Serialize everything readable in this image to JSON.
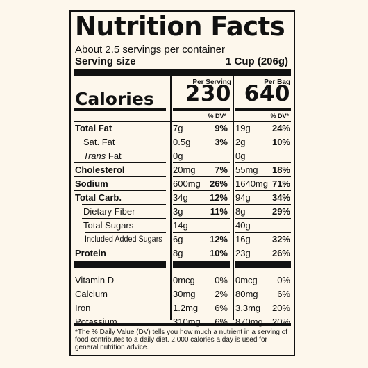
{
  "title": "Nutrition Facts",
  "servings_per_container": "About 2.5 servings per container",
  "serving_size_label": "Serving size",
  "serving_size_value": "1 Cup (206g)",
  "per_serving_label": "Per Serving",
  "per_bag_label": "Per Bag",
  "calories_label": "Calories",
  "calories_serving": "230",
  "calories_bag": "640",
  "dv_header": "% DV*",
  "rows": [
    {
      "name": "Total Fat",
      "bold": true,
      "indent": 0,
      "amt1": "7g",
      "dv1": "9%",
      "amt2": "19g",
      "dv2": "24%"
    },
    {
      "name": "Sat. Fat",
      "bold": false,
      "indent": 1,
      "amt1": "0.5g",
      "dv1": "3%",
      "amt2": "2g",
      "dv2": "10%"
    },
    {
      "name": "Trans Fat",
      "bold": false,
      "indent": 1,
      "italic_word": "Trans",
      "amt1": "0g",
      "dv1": "",
      "amt2": "0g",
      "dv2": ""
    },
    {
      "name": "Cholesterol",
      "bold": true,
      "indent": 0,
      "amt1": "20mg",
      "dv1": "7%",
      "amt2": "55mg",
      "dv2": "18%"
    },
    {
      "name": "Sodium",
      "bold": true,
      "indent": 0,
      "amt1": "600mg",
      "dv1": "26%",
      "amt2": "1640mg",
      "dv2": "71%"
    },
    {
      "name": "Total Carb.",
      "bold": true,
      "indent": 0,
      "amt1": "34g",
      "dv1": "12%",
      "amt2": "94g",
      "dv2": "34%"
    },
    {
      "name": "Dietary Fiber",
      "bold": false,
      "indent": 1,
      "amt1": "3g",
      "dv1": "11%",
      "amt2": "8g",
      "dv2": "29%"
    },
    {
      "name": "Total Sugars",
      "bold": false,
      "indent": 1,
      "amt1": "14g",
      "dv1": "",
      "amt2": "40g",
      "dv2": ""
    },
    {
      "name": "Included Added Sugars",
      "bold": false,
      "indent": 2,
      "amt1": "6g",
      "dv1": "12%",
      "amt2": "16g",
      "dv2": "32%"
    },
    {
      "name": "Protein",
      "bold": true,
      "indent": 0,
      "amt1": "8g",
      "dv1": "10%",
      "amt2": "23g",
      "dv2": "26%"
    }
  ],
  "vitamins": [
    {
      "name": "Vitamin D",
      "amt1": "0mcg",
      "dv1": "0%",
      "amt2": "0mcg",
      "dv2": "0%"
    },
    {
      "name": "Calcium",
      "amt1": "30mg",
      "dv1": "2%",
      "amt2": "80mg",
      "dv2": "6%"
    },
    {
      "name": "Iron",
      "amt1": "1.2mg",
      "dv1": "6%",
      "amt2": "3.3mg",
      "dv2": "20%"
    },
    {
      "name": "Potassium",
      "amt1": "310mg",
      "dv1": "6%",
      "amt2": "870mg",
      "dv2": "20%"
    }
  ],
  "footnote": "*The % Daily Value (DV) tells you how much a nutrient in a serving of food contributes to a daily diet. 2,000 calories a day is used for general nutrition advice."
}
